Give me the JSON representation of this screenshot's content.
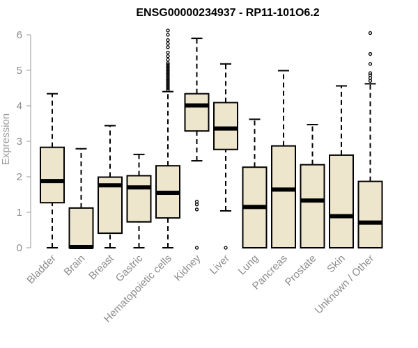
{
  "chart_data": {
    "type": "boxplot",
    "title": "ENSG00000234937 - RP11-101O6.2",
    "xlabel": "",
    "ylabel": "Expression",
    "ylim": [
      0,
      6.2
    ],
    "yticks": [
      0,
      1,
      2,
      3,
      4,
      5,
      6
    ],
    "grid": false,
    "colors": {
      "box_fill": "#ede6cc",
      "stroke": "#000000",
      "axis": "#9a9a9a",
      "title": "#000000"
    },
    "categories": [
      "Bladder",
      "Brain",
      "Breast",
      "Gastric",
      "Hematopoietic cells",
      "Kidney",
      "Liver",
      "Lung",
      "Pancreas",
      "Prostate",
      "Skin",
      "Unknown / Other"
    ],
    "boxes": [
      {
        "min": 0,
        "q1": 1.27,
        "median": 1.88,
        "q3": 2.83,
        "max": 4.34,
        "outliers": []
      },
      {
        "min": 0,
        "q1": 0,
        "median": 0.02,
        "q3": 1.12,
        "max": 2.79,
        "outliers": []
      },
      {
        "min": 0,
        "q1": 0.41,
        "median": 1.76,
        "q3": 1.99,
        "max": 3.44,
        "outliers": []
      },
      {
        "min": 0,
        "q1": 0.73,
        "median": 1.7,
        "q3": 2.03,
        "max": 2.63,
        "outliers": []
      },
      {
        "min": 0,
        "q1": 0.84,
        "median": 1.55,
        "q3": 2.31,
        "max": 4.4,
        "outliers": [
          4.45,
          4.5,
          4.55,
          4.6,
          4.65,
          4.7,
          4.75,
          4.8,
          4.85,
          4.9,
          4.95,
          5.0,
          5.05,
          5.1,
          5.15,
          5.2,
          5.3,
          5.4,
          5.5,
          5.65,
          5.75,
          5.85,
          6.0,
          6.12
        ]
      },
      {
        "min": 2.45,
        "q1": 3.29,
        "median": 4.01,
        "q3": 4.34,
        "max": 5.9,
        "outliers": [
          0,
          1.08,
          1.22,
          1.3
        ]
      },
      {
        "min": 1.04,
        "q1": 2.77,
        "median": 3.36,
        "q3": 4.09,
        "max": 5.18,
        "outliers": [
          0
        ]
      },
      {
        "min": 0,
        "q1": 0,
        "median": 1.15,
        "q3": 2.27,
        "max": 3.62,
        "outliers": []
      },
      {
        "min": 0,
        "q1": 0,
        "median": 1.64,
        "q3": 2.87,
        "max": 4.99,
        "outliers": []
      },
      {
        "min": 0,
        "q1": 0,
        "median": 1.33,
        "q3": 2.34,
        "max": 3.47,
        "outliers": []
      },
      {
        "min": 0,
        "q1": 0,
        "median": 0.89,
        "q3": 2.61,
        "max": 4.56,
        "outliers": []
      },
      {
        "min": 0,
        "q1": 0,
        "median": 0.71,
        "q3": 1.87,
        "max": 4.62,
        "outliers": [
          4.7,
          4.78,
          4.86,
          4.92,
          5.18,
          5.46,
          6.05
        ]
      }
    ]
  }
}
